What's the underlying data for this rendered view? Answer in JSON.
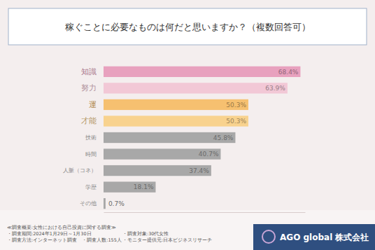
{
  "chart_data": {
    "type": "bar",
    "orientation": "horizontal",
    "title": "稼ぐことに必要なものは何だと思いますか？（複数回答可）",
    "categories": [
      "知識",
      "努力",
      "運",
      "才能",
      "技術",
      "時間",
      "人脈（コネ）",
      "学歴",
      "その他"
    ],
    "values": [
      68.4,
      63.9,
      50.3,
      50.3,
      45.8,
      40.7,
      37.4,
      18.1,
      0.7
    ],
    "value_labels": [
      "68.4%",
      "63.9%",
      "50.3%",
      "50.3%",
      "45.8%",
      "40.7%",
      "37.4%",
      "18.1%",
      "0.7%"
    ],
    "colors": [
      "#e8a1be",
      "#f2c8d6",
      "#f6c070",
      "#f8d28e",
      "#a8a8a8",
      "#a8a8a8",
      "#a8a8a8",
      "#a8a8a8",
      "#a8a8a8"
    ],
    "xlim": [
      0,
      70
    ],
    "xticks": [],
    "tick_labels": "y",
    "data_labels": true,
    "grid": false,
    "annotations": [
      "≪調査概要:女性における自己投資に関する調査≫",
      "・調査期間:2024年1月29日～1月30日",
      "・調査方法:インターネット調査　・調査人数:155人",
      "・調査対象:30代女性",
      "・モニター提供元:日本ビジネスリサーチ"
    ],
    "source": "AGO global 株式会社"
  }
}
